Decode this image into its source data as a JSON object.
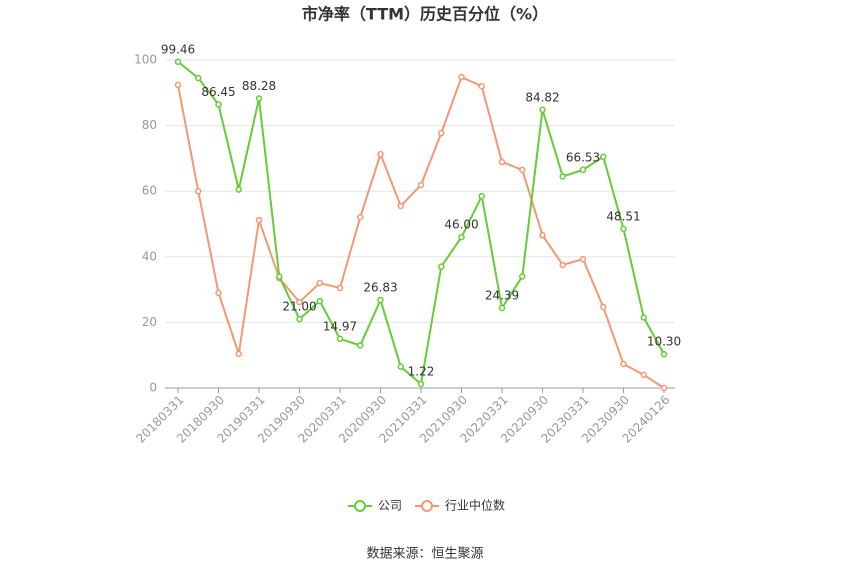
{
  "chart_data": {
    "type": "line",
    "title": "市净率（TTM）历史百分位（%）",
    "categories": [
      "20180331",
      null,
      "20180930",
      null,
      "20190331",
      null,
      "20190930",
      null,
      "20200331",
      null,
      "20200930",
      null,
      "20210331",
      null,
      "20210930",
      null,
      "20220331",
      null,
      "20220930",
      null,
      "20230331",
      null,
      "20230930",
      null,
      "20240126"
    ],
    "series": [
      {
        "name": "公司",
        "color": "#66cc33",
        "values": [
          99.46,
          94.5,
          86.45,
          60.5,
          88.28,
          34,
          21,
          26.5,
          14.97,
          13,
          26.83,
          6.5,
          1.22,
          37,
          46,
          58.5,
          24.39,
          34,
          84.82,
          64.5,
          66.53,
          70.5,
          48.51,
          21.5,
          10.3
        ],
        "value_labels": [
          "99.46",
          null,
          "86.45",
          null,
          "88.28",
          null,
          "21.00",
          null,
          "14.97",
          null,
          "26.83",
          null,
          "1.22",
          null,
          "46.00",
          null,
          "24.39",
          null,
          "84.82",
          null,
          "66.53",
          null,
          "48.51",
          null,
          "10.30"
        ]
      },
      {
        "name": "行业中位数",
        "color": "#f59773",
        "values": [
          92.4,
          60,
          29,
          10.4,
          51.2,
          33.5,
          26.2,
          32,
          30.5,
          52.1,
          71.3,
          55.5,
          61.9,
          77.7,
          94.8,
          92,
          68.9,
          66.5,
          46.6,
          37.5,
          39.3,
          24.7,
          7.3,
          4,
          0
        ]
      }
    ],
    "ylim": [
      0,
      100
    ],
    "yticks": [
      0,
      20,
      40,
      60,
      80,
      100
    ],
    "grid": true,
    "source": "数据来源：恒生聚源"
  }
}
